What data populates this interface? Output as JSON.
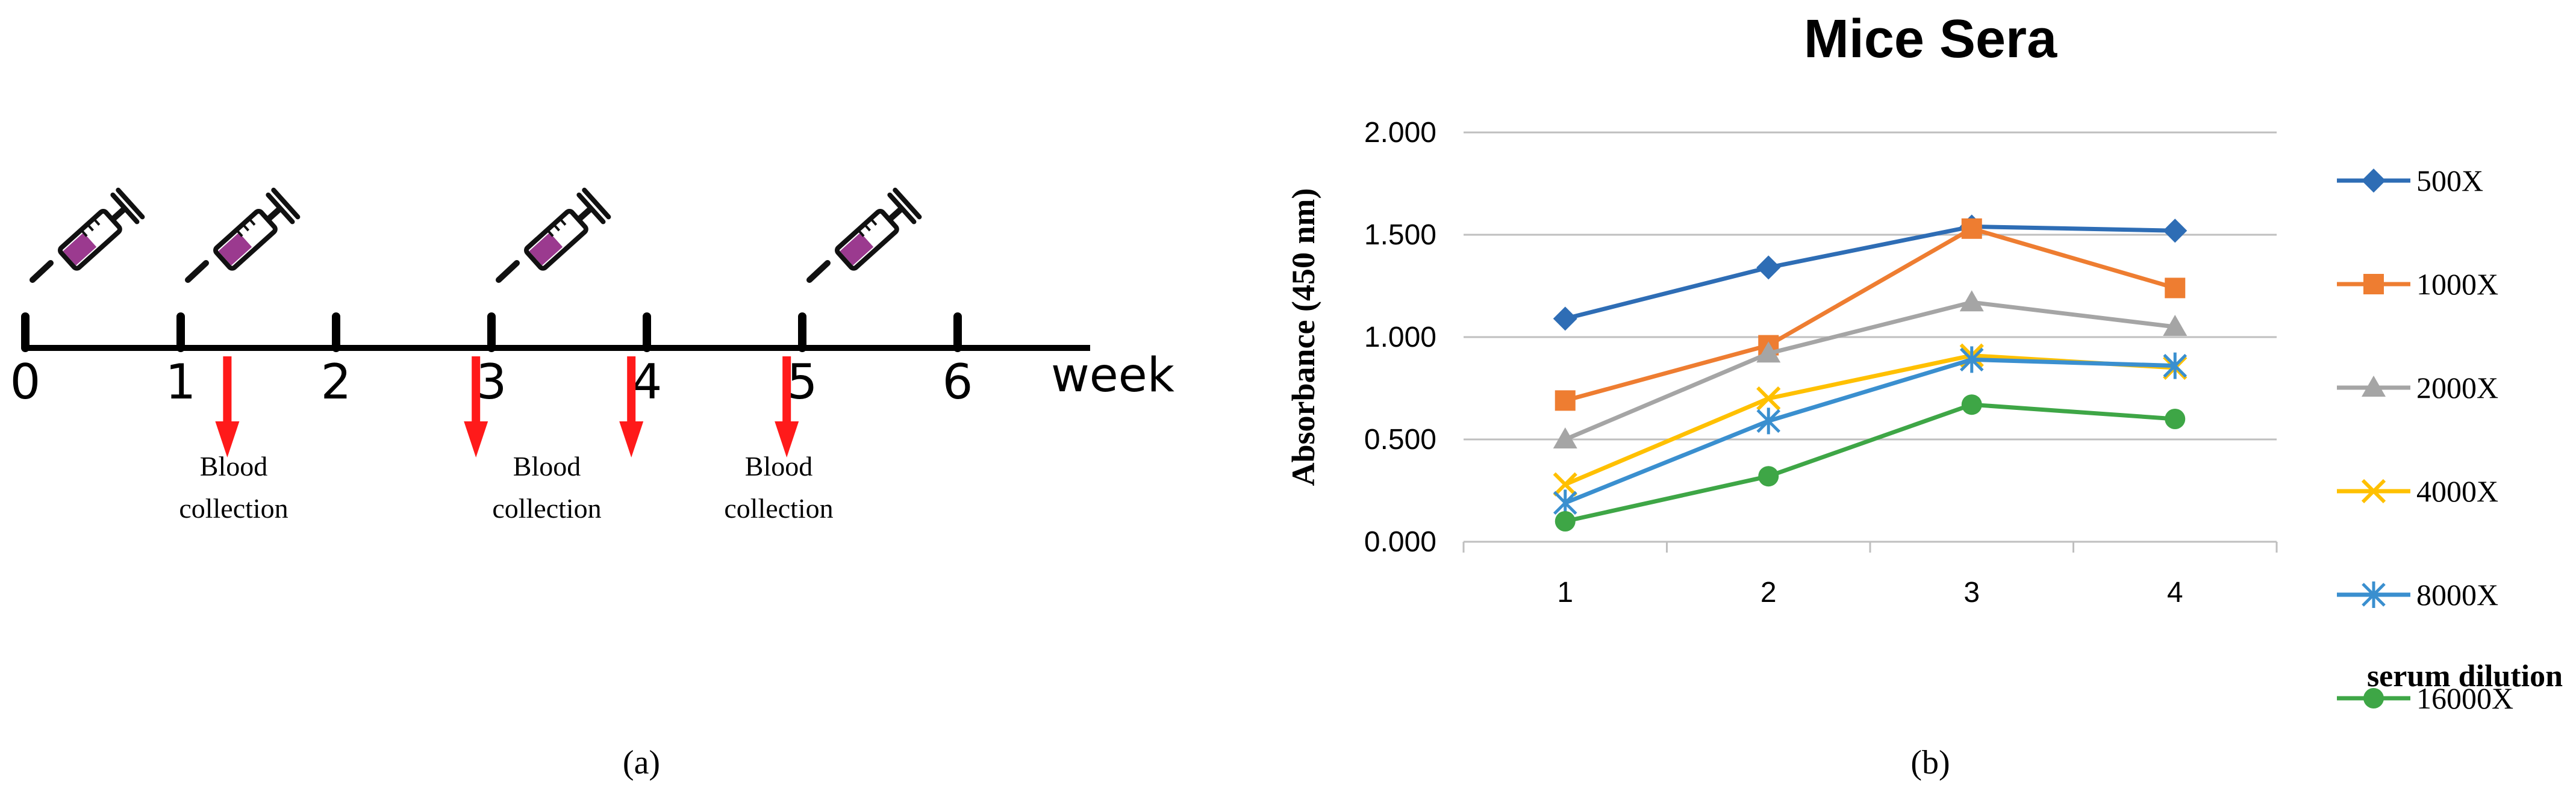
{
  "panel_a": {
    "caption": "(a)",
    "week_label": "week",
    "weeks": [
      "0",
      "1",
      "2",
      "3",
      "4",
      "5",
      "6"
    ],
    "injection_weeks": [
      0,
      1,
      3,
      5
    ],
    "blood_collection_weeks": [
      1.3,
      2.9,
      3.9,
      4.9
    ],
    "blood_labels": [
      {
        "line1": "Blood",
        "line2": "collection"
      },
      {
        "line1": "Blood",
        "line2": "collection"
      },
      {
        "line1": "Blood",
        "line2": "collection"
      }
    ],
    "arrow_color": "#ff1a1a",
    "syringe_fill": "#9b3a8f"
  },
  "panel_b": {
    "caption": "(b)",
    "series_title": "serum dilution"
  },
  "chart_data": {
    "type": "line",
    "title": "Mice Sera",
    "xlabel": "",
    "ylabel": "Absorbance (450 nm)",
    "categories": [
      "1",
      "2",
      "3",
      "4"
    ],
    "ylim": [
      0,
      2
    ],
    "yticks": [
      "0.000",
      "0.500",
      "1.000",
      "1.500",
      "2.000"
    ],
    "ytick_values": [
      0,
      0.5,
      1.0,
      1.5,
      2.0
    ],
    "grid": true,
    "legend_position": "right",
    "series": [
      {
        "name": "500X",
        "values": [
          1.09,
          1.34,
          1.54,
          1.52
        ],
        "color": "#2e6db5",
        "marker": "diamond"
      },
      {
        "name": "1000X",
        "values": [
          0.69,
          0.96,
          1.53,
          1.24
        ],
        "color": "#ee7d31",
        "marker": "square"
      },
      {
        "name": "2000X",
        "values": [
          0.5,
          0.92,
          1.17,
          1.05
        ],
        "color": "#a5a5a5",
        "marker": "triangle"
      },
      {
        "name": "4000X",
        "values": [
          0.28,
          0.7,
          0.91,
          0.85
        ],
        "color": "#ffc000",
        "marker": "x"
      },
      {
        "name": "8000X",
        "values": [
          0.19,
          0.59,
          0.89,
          0.86
        ],
        "color": "#3a8fcf",
        "marker": "star"
      },
      {
        "name": "16000X",
        "values": [
          0.1,
          0.32,
          0.67,
          0.6
        ],
        "color": "#3ea646",
        "marker": "circle"
      }
    ]
  }
}
